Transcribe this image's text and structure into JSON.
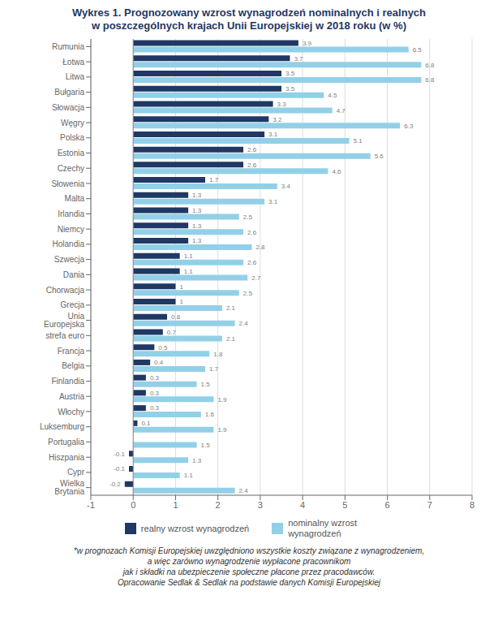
{
  "chart_data": {
    "type": "bar",
    "orientation": "horizontal",
    "title": "Wykres 1. Prognozowany wzrost wynagrodzeń nominalnych i realnych\nw poszczególnych krajach Unii Europejskiej w 2018 roku (w %)",
    "annotations": [
      "*w prognozach Komisji Europejskiej uwzględniono wszystkie koszty związane z wynagrodzeniem,",
      "a więc zarówno wynagrodzenie wypłacone pracownikom",
      "jak i składki na ubezpieczenie społeczne płacone przez pracodawców.",
      "Opracowanie Sedlak & Sedlak na podstawie danych Komisji Europejskiej"
    ],
    "categories": [
      "Rumunia",
      "Łotwa",
      "Litwa",
      "Bułgaria",
      "Słowacja",
      "Węgry",
      "Polska",
      "Estonia",
      "Czechy",
      "Słowenia",
      "Malta",
      "Irlandia",
      "Niemcy",
      "Holandia",
      "Szwecja",
      "Dania",
      "Chorwacja",
      "Grecja",
      "Unia Europejska",
      "strefa euro",
      "Francja",
      "Belgia",
      "Finlandia",
      "Austria",
      "Włochy",
      "Luksemburg",
      "Portugalia",
      "Hiszpania",
      "Cypr",
      "Wielka Brytania"
    ],
    "series": [
      {
        "name": "realny wzrost wynagrodzeń",
        "color": "#1f3864",
        "values": [
          3.9,
          3.7,
          3.5,
          3.5,
          3.3,
          3.2,
          3.1,
          2.6,
          2.6,
          1.7,
          1.3,
          1.3,
          1.3,
          1.3,
          1.1,
          1.1,
          1.0,
          1.0,
          0.8,
          0.7,
          0.5,
          0.4,
          0.3,
          0.3,
          0.3,
          0.1,
          0.0,
          -0.1,
          -0.1,
          -0.2
        ]
      },
      {
        "name": "nominalny wzrost\nwynagrodzeń",
        "color": "#92d0e8",
        "values": [
          6.5,
          6.8,
          6.8,
          4.5,
          4.7,
          6.3,
          5.1,
          5.6,
          4.6,
          3.4,
          3.1,
          2.5,
          2.6,
          2.8,
          2.6,
          2.7,
          2.5,
          2.1,
          2.4,
          2.1,
          1.8,
          1.7,
          1.5,
          1.9,
          1.6,
          1.9,
          1.5,
          1.3,
          1.1,
          2.4
        ]
      }
    ],
    "xlim": [
      -1,
      8
    ],
    "xticks": [
      -1,
      0,
      1,
      2,
      3,
      4,
      5,
      6,
      7,
      8
    ],
    "grid": "x",
    "legend": "bottom",
    "data_labels": true
  }
}
